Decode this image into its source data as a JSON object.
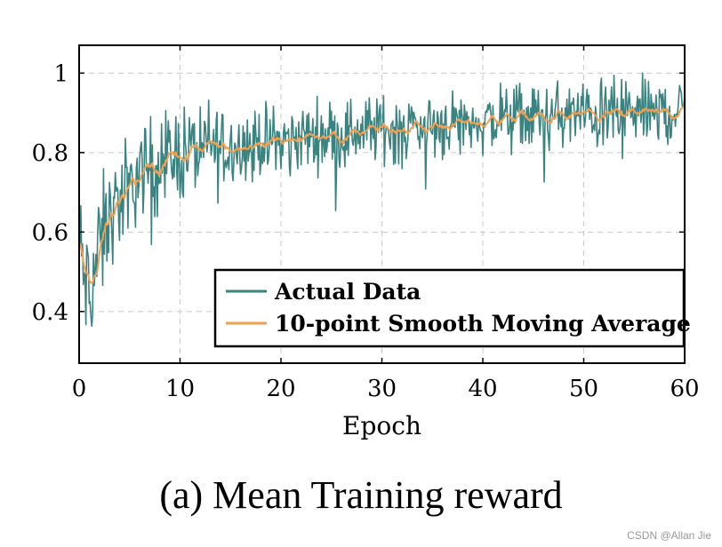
{
  "chart_data": {
    "type": "line",
    "title": "",
    "xlabel": "Epoch",
    "ylabel": "",
    "xlim": [
      0,
      60
    ],
    "ylim": [
      0.27,
      1.07
    ],
    "xticks": [
      "0",
      "10",
      "20",
      "30",
      "40",
      "50",
      "60"
    ],
    "yticks": [
      "0.4",
      "0.6",
      "0.8",
      "1"
    ],
    "grid": true,
    "legend_position": "lower-right",
    "series": [
      {
        "name": "Actual Data",
        "color": "#3a8380",
        "description_values": {
          "x": [
            0,
            0.5,
            1,
            1.5,
            2,
            3,
            4,
            5,
            6,
            8,
            10,
            12,
            15,
            20,
            25,
            30,
            35,
            40,
            45,
            50,
            55,
            60
          ],
          "y": [
            0.58,
            0.48,
            0.44,
            0.5,
            0.55,
            0.64,
            0.68,
            0.71,
            0.75,
            0.78,
            0.8,
            0.81,
            0.82,
            0.83,
            0.85,
            0.86,
            0.87,
            0.88,
            0.89,
            0.895,
            0.9,
            0.905
          ]
        }
      },
      {
        "name": "10-point Smooth Moving Average",
        "color": "#f0a050",
        "description_values": {
          "x": [
            0,
            0.5,
            1,
            1.5,
            2,
            3,
            4,
            5,
            6,
            8,
            10,
            12,
            15,
            20,
            25,
            30,
            35,
            40,
            45,
            50,
            55,
            60
          ],
          "y": [
            0.55,
            0.46,
            0.45,
            0.52,
            0.57,
            0.65,
            0.69,
            0.72,
            0.75,
            0.78,
            0.8,
            0.81,
            0.82,
            0.83,
            0.85,
            0.86,
            0.87,
            0.88,
            0.89,
            0.895,
            0.9,
            0.905
          ]
        }
      }
    ]
  },
  "caption": "(a) Mean Training reward",
  "watermark": "CSDN @Allan Jie"
}
